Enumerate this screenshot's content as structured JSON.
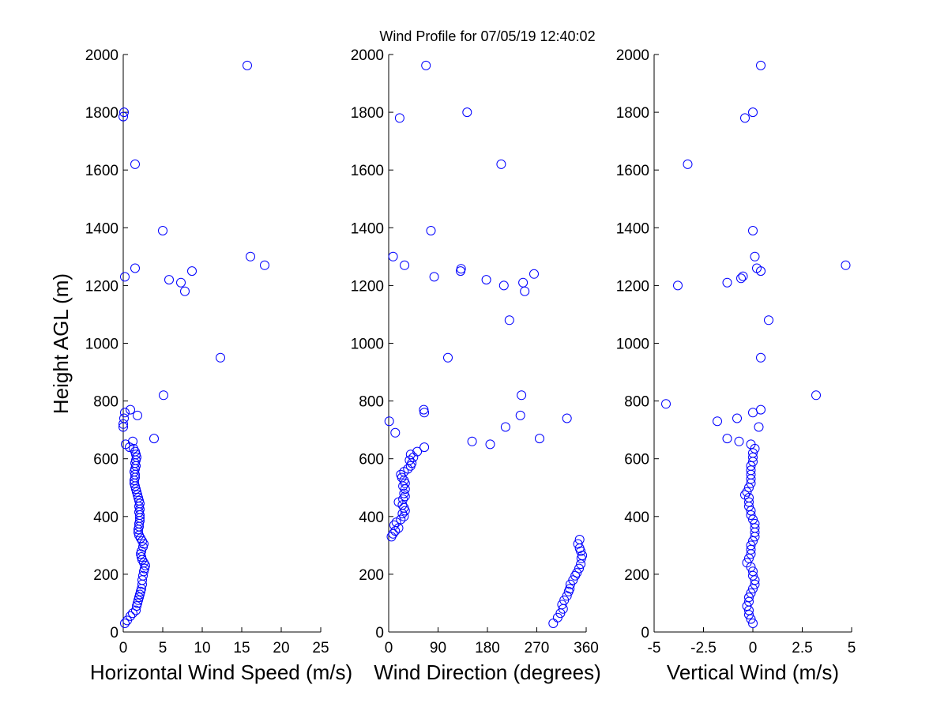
{
  "chart_data": [
    {
      "type": "scatter",
      "title": "Wind Profile for  07/05/19 12:40:02",
      "xlabel": "Horizontal Wind Speed (m/s)",
      "ylabel": "Height AGL (m)",
      "xlim": [
        0,
        25
      ],
      "ylim": [
        0,
        2000
      ],
      "xticks": [
        "0",
        "5",
        "10",
        "15",
        "20",
        "25"
      ],
      "yticks": [
        "0",
        "200",
        "400",
        "600",
        "800",
        "1000",
        "1200",
        "1400",
        "1600",
        "1800",
        "2000"
      ],
      "marker_color": "#0000ff",
      "points": [
        [
          0.2,
          30
        ],
        [
          0.5,
          40
        ],
        [
          0.9,
          55
        ],
        [
          1.2,
          65
        ],
        [
          1.6,
          75
        ],
        [
          1.7,
          90
        ],
        [
          1.8,
          100
        ],
        [
          1.9,
          110
        ],
        [
          2.0,
          120
        ],
        [
          2.1,
          130
        ],
        [
          2.2,
          140
        ],
        [
          2.3,
          150
        ],
        [
          2.4,
          165
        ],
        [
          2.4,
          180
        ],
        [
          2.5,
          195
        ],
        [
          2.6,
          210
        ],
        [
          2.7,
          220
        ],
        [
          2.8,
          230
        ],
        [
          2.6,
          240
        ],
        [
          2.4,
          250
        ],
        [
          2.3,
          260
        ],
        [
          2.2,
          270
        ],
        [
          2.3,
          280
        ],
        [
          2.5,
          295
        ],
        [
          2.6,
          305
        ],
        [
          2.4,
          315
        ],
        [
          2.2,
          325
        ],
        [
          2.0,
          335
        ],
        [
          1.9,
          345
        ],
        [
          1.9,
          355
        ],
        [
          2.0,
          365
        ],
        [
          2.0,
          375
        ],
        [
          2.1,
          385
        ],
        [
          2.1,
          395
        ],
        [
          2.1,
          405
        ],
        [
          2.0,
          415
        ],
        [
          2.1,
          425
        ],
        [
          2.0,
          435
        ],
        [
          2.1,
          445
        ],
        [
          2.0,
          455
        ],
        [
          1.9,
          465
        ],
        [
          1.8,
          475
        ],
        [
          1.7,
          485
        ],
        [
          1.6,
          495
        ],
        [
          1.5,
          505
        ],
        [
          1.4,
          515
        ],
        [
          1.4,
          525
        ],
        [
          1.5,
          535
        ],
        [
          1.5,
          545
        ],
        [
          1.4,
          555
        ],
        [
          1.5,
          565
        ],
        [
          1.6,
          575
        ],
        [
          1.5,
          585
        ],
        [
          1.6,
          595
        ],
        [
          1.7,
          605
        ],
        [
          1.6,
          615
        ],
        [
          1.5,
          625
        ],
        [
          1.3,
          635
        ],
        [
          1.2,
          660
        ],
        [
          0.8,
          640
        ],
        [
          0.3,
          650
        ],
        [
          3.9,
          670
        ],
        [
          0.0,
          710
        ],
        [
          0.0,
          720
        ],
        [
          0.1,
          740
        ],
        [
          0.2,
          760
        ],
        [
          0.9,
          770
        ],
        [
          1.8,
          750
        ],
        [
          5.1,
          820
        ],
        [
          12.3,
          950
        ],
        [
          7.8,
          1180
        ],
        [
          7.3,
          1210
        ],
        [
          5.8,
          1220
        ],
        [
          0.2,
          1230
        ],
        [
          8.7,
          1250
        ],
        [
          1.5,
          1260
        ],
        [
          17.9,
          1270
        ],
        [
          16.1,
          1300
        ],
        [
          5.0,
          1390
        ],
        [
          1.5,
          1620
        ],
        [
          0.0,
          1785
        ],
        [
          0.1,
          1800
        ],
        [
          15.7,
          1962
        ]
      ]
    },
    {
      "type": "scatter",
      "xlabel": "Wind Direction (degrees)",
      "xlim": [
        0,
        360
      ],
      "ylim": [
        0,
        2000
      ],
      "xticks": [
        "0",
        "90",
        "180",
        "270",
        "360"
      ],
      "yticks": [
        "0",
        "200",
        "400",
        "600",
        "800",
        "1000",
        "1200",
        "1400",
        "1600",
        "1800",
        "2000"
      ],
      "marker_color": "#0000ff",
      "points": [
        [
          300,
          30
        ],
        [
          308,
          50
        ],
        [
          313,
          65
        ],
        [
          318,
          80
        ],
        [
          316,
          95
        ],
        [
          320,
          110
        ],
        [
          325,
          125
        ],
        [
          328,
          140
        ],
        [
          330,
          150
        ],
        [
          331,
          165
        ],
        [
          336,
          180
        ],
        [
          340,
          195
        ],
        [
          343,
          205
        ],
        [
          347,
          220
        ],
        [
          350,
          235
        ],
        [
          351,
          255
        ],
        [
          353,
          265
        ],
        [
          350,
          280
        ],
        [
          348,
          290
        ],
        [
          345,
          305
        ],
        [
          348,
          320
        ],
        [
          5,
          330
        ],
        [
          8,
          340
        ],
        [
          12,
          350
        ],
        [
          18,
          360
        ],
        [
          10,
          370
        ],
        [
          14,
          380
        ],
        [
          22,
          390
        ],
        [
          28,
          400
        ],
        [
          25,
          410
        ],
        [
          30,
          420
        ],
        [
          28,
          430
        ],
        [
          25,
          440
        ],
        [
          18,
          450
        ],
        [
          26,
          460
        ],
        [
          30,
          470
        ],
        [
          28,
          480
        ],
        [
          30,
          495
        ],
        [
          26,
          505
        ],
        [
          30,
          515
        ],
        [
          28,
          525
        ],
        [
          24,
          535
        ],
        [
          22,
          545
        ],
        [
          28,
          555
        ],
        [
          35,
          565
        ],
        [
          40,
          575
        ],
        [
          42,
          585
        ],
        [
          38,
          595
        ],
        [
          45,
          605
        ],
        [
          40,
          615
        ],
        [
          52,
          625
        ],
        [
          65,
          640
        ],
        [
          1,
          730
        ],
        [
          12,
          690
        ],
        [
          152,
          660
        ],
        [
          185,
          650
        ],
        [
          213,
          710
        ],
        [
          275,
          670
        ],
        [
          240,
          750
        ],
        [
          65,
          760
        ],
        [
          64,
          770
        ],
        [
          325,
          740
        ],
        [
          242,
          820
        ],
        [
          108,
          950
        ],
        [
          220,
          1080
        ],
        [
          248,
          1180
        ],
        [
          210,
          1200
        ],
        [
          245,
          1210
        ],
        [
          178,
          1220
        ],
        [
          83,
          1230
        ],
        [
          265,
          1240
        ],
        [
          131,
          1250
        ],
        [
          132,
          1258
        ],
        [
          29,
          1270
        ],
        [
          8,
          1300
        ],
        [
          77,
          1390
        ],
        [
          205,
          1620
        ],
        [
          20,
          1780
        ],
        [
          143,
          1800
        ],
        [
          68,
          1962
        ]
      ]
    },
    {
      "type": "scatter",
      "xlabel": "Vertical Wind (m/s)",
      "xlim": [
        -5,
        5
      ],
      "ylim": [
        0,
        2000
      ],
      "xticks": [
        "-5",
        "-2.5",
        "0",
        "2.5",
        "5"
      ],
      "yticks": [
        "0",
        "200",
        "400",
        "600",
        "800",
        "1000",
        "1200",
        "1400",
        "1600",
        "1800",
        "2000"
      ],
      "marker_color": "#0000ff",
      "points": [
        [
          0.0,
          30
        ],
        [
          -0.1,
          45
        ],
        [
          -0.2,
          60
        ],
        [
          -0.2,
          75
        ],
        [
          -0.3,
          90
        ],
        [
          -0.2,
          105
        ],
        [
          -0.2,
          120
        ],
        [
          -0.1,
          135
        ],
        [
          0.0,
          150
        ],
        [
          0.1,
          165
        ],
        [
          0.1,
          180
        ],
        [
          0.0,
          195
        ],
        [
          0.0,
          210
        ],
        [
          -0.1,
          225
        ],
        [
          -0.3,
          240
        ],
        [
          -0.2,
          255
        ],
        [
          -0.1,
          270
        ],
        [
          -0.1,
          285
        ],
        [
          -0.1,
          300
        ],
        [
          0.0,
          315
        ],
        [
          0.1,
          330
        ],
        [
          0.1,
          345
        ],
        [
          0.1,
          360
        ],
        [
          0.1,
          375
        ],
        [
          0.0,
          390
        ],
        [
          -0.1,
          405
        ],
        [
          -0.1,
          420
        ],
        [
          -0.2,
          435
        ],
        [
          -0.2,
          450
        ],
        [
          -0.2,
          465
        ],
        [
          -0.4,
          475
        ],
        [
          -0.3,
          485
        ],
        [
          -0.2,
          500
        ],
        [
          -0.1,
          515
        ],
        [
          -0.1,
          530
        ],
        [
          -0.1,
          545
        ],
        [
          -0.1,
          560
        ],
        [
          -0.1,
          575
        ],
        [
          0.0,
          590
        ],
        [
          0.0,
          605
        ],
        [
          0.0,
          620
        ],
        [
          0.1,
          635
        ],
        [
          -0.1,
          650
        ],
        [
          -1.3,
          670
        ],
        [
          -0.7,
          660
        ],
        [
          -1.8,
          730
        ],
        [
          -0.8,
          740
        ],
        [
          0.3,
          710
        ],
        [
          0.0,
          760
        ],
        [
          0.4,
          770
        ],
        [
          -4.4,
          790
        ],
        [
          3.2,
          820
        ],
        [
          0.4,
          950
        ],
        [
          0.8,
          1080
        ],
        [
          -3.8,
          1200
        ],
        [
          -1.3,
          1210
        ],
        [
          -0.6,
          1225
        ],
        [
          -0.5,
          1232
        ],
        [
          0.4,
          1250
        ],
        [
          0.2,
          1260
        ],
        [
          4.7,
          1270
        ],
        [
          0.1,
          1300
        ],
        [
          0.0,
          1390
        ],
        [
          -3.3,
          1620
        ],
        [
          -0.4,
          1780
        ],
        [
          0.0,
          1800
        ],
        [
          0.4,
          1962
        ]
      ]
    }
  ]
}
